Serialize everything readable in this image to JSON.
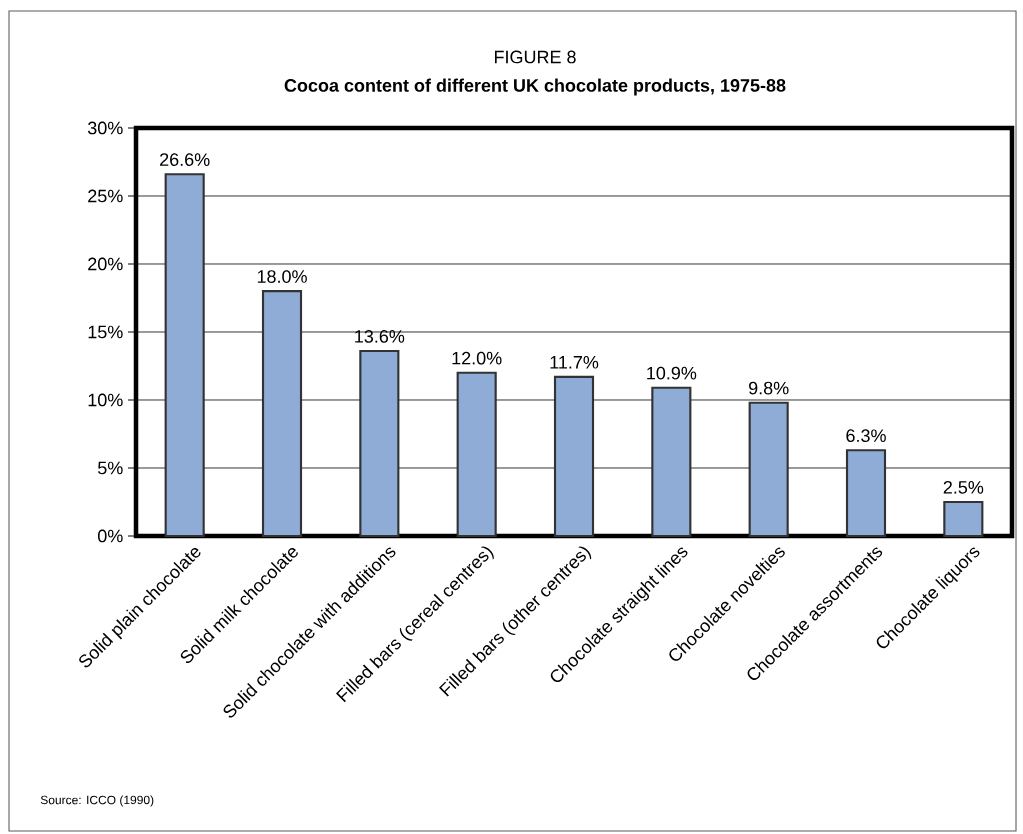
{
  "chart_data": {
    "type": "bar",
    "title": "FIGURE 8",
    "subtitle": "Cocoa content of different UK chocolate products, 1975-88",
    "categories": [
      "Solid plain chocolate",
      "Solid milk chocolate",
      "Solid chocolate with additions",
      "Filled bars (cereal centres)",
      "Filled bars (other centres)",
      "Chocolate straight lines",
      "Chocolate novelties",
      "Chocolate assortments",
      "Chocolate liquors"
    ],
    "values": [
      26.6,
      18.0,
      13.6,
      12.0,
      11.7,
      10.9,
      9.8,
      6.3,
      2.5
    ],
    "value_labels": [
      "26.6%",
      "18.0%",
      "13.6%",
      "12.0%",
      "11.7%",
      "10.9%",
      "9.8%",
      "6.3%",
      "2.5%"
    ],
    "color": "#8eacd6",
    "ylim": [
      0,
      30
    ],
    "yticks": [
      {
        "value": 0,
        "label": "0%"
      },
      {
        "value": 5,
        "label": "5%"
      },
      {
        "value": 10,
        "label": "10%"
      },
      {
        "value": 15,
        "label": "15%"
      },
      {
        "value": 20,
        "label": "20%"
      },
      {
        "value": 25,
        "label": "25%"
      },
      {
        "value": 30,
        "label": "30%"
      }
    ],
    "grid": "y",
    "annotations": [
      "Source: ICCO (1990)"
    ]
  }
}
